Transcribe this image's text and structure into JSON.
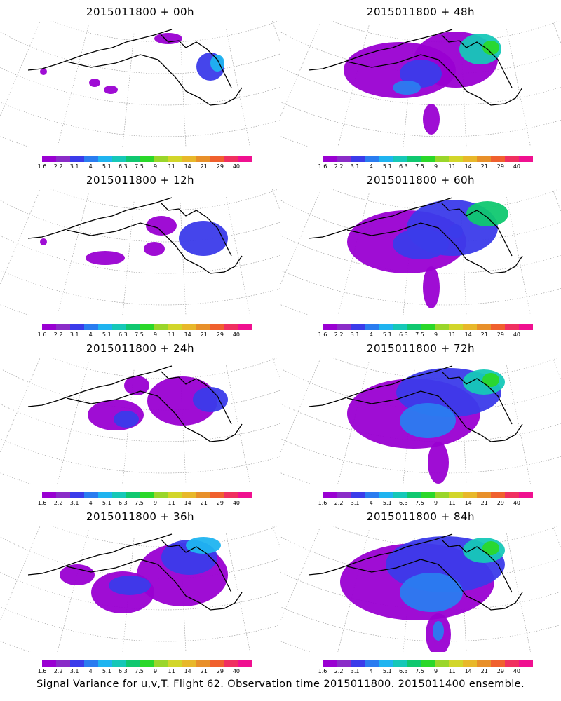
{
  "figure": {
    "caption": "Signal Variance for u,v,T. Flight 62. Observation time 2015011800. 2015011400 ensemble."
  },
  "colorbar": {
    "colors": [
      "#9a00d2",
      "#8a2cc8",
      "#3b3bea",
      "#2a7cf0",
      "#1fb4f0",
      "#16c8b8",
      "#10c870",
      "#2ad82a",
      "#9ad62a",
      "#d2d62a",
      "#e8b82a",
      "#e8902a",
      "#f0602e",
      "#f03060",
      "#f01090"
    ],
    "ticks": [
      "1.6",
      "2.2",
      "3.1",
      "4",
      "5.1",
      "6.3",
      "7.5",
      "9",
      "11",
      "14",
      "21",
      "29",
      "40"
    ]
  },
  "chart_data": [
    {
      "type": "heatmap",
      "title": "2015011800 + 00h",
      "colorbar_ticks": [
        "1.6",
        "2.2",
        "3.1",
        "4",
        "5.1",
        "6.3",
        "7.5",
        "9",
        "11",
        "14",
        "21",
        "29",
        "40"
      ]
    },
    {
      "type": "heatmap",
      "title": "2015011800 + 12h",
      "colorbar_ticks": [
        "1.6",
        "2.2",
        "3.1",
        "4",
        "5.1",
        "6.3",
        "7.5",
        "9",
        "11",
        "14",
        "21",
        "29",
        "40"
      ]
    },
    {
      "type": "heatmap",
      "title": "2015011800 + 24h",
      "colorbar_ticks": [
        "1.6",
        "2.2",
        "3.1",
        "4",
        "5.1",
        "6.3",
        "7.5",
        "9",
        "11",
        "14",
        "21",
        "29",
        "40"
      ]
    },
    {
      "type": "heatmap",
      "title": "2015011800 + 36h",
      "colorbar_ticks": [
        "1.6",
        "2.2",
        "3.1",
        "4",
        "5.1",
        "6.3",
        "7.5",
        "9",
        "11",
        "14",
        "21",
        "29",
        "40"
      ]
    },
    {
      "type": "heatmap",
      "title": "2015011800 + 48h",
      "colorbar_ticks": [
        "1.6",
        "2.2",
        "3.1",
        "4",
        "5.1",
        "6.3",
        "7.5",
        "9",
        "11",
        "14",
        "21",
        "29",
        "40"
      ]
    },
    {
      "type": "heatmap",
      "title": "2015011800 + 60h",
      "colorbar_ticks": [
        "1.6",
        "2.2",
        "3.1",
        "4",
        "5.1",
        "6.3",
        "7.5",
        "9",
        "11",
        "14",
        "21",
        "29",
        "40"
      ]
    },
    {
      "type": "heatmap",
      "title": "2015011800 + 72h",
      "colorbar_ticks": [
        "1.6",
        "2.2",
        "3.1",
        "4",
        "5.1",
        "6.3",
        "7.5",
        "9",
        "11",
        "14",
        "21",
        "29",
        "40"
      ]
    },
    {
      "type": "heatmap",
      "title": "2015011800 + 84h",
      "colorbar_ticks": [
        "1.6",
        "2.2",
        "3.1",
        "4",
        "5.1",
        "6.3",
        "7.5",
        "9",
        "11",
        "14",
        "21",
        "29",
        "40"
      ]
    }
  ]
}
